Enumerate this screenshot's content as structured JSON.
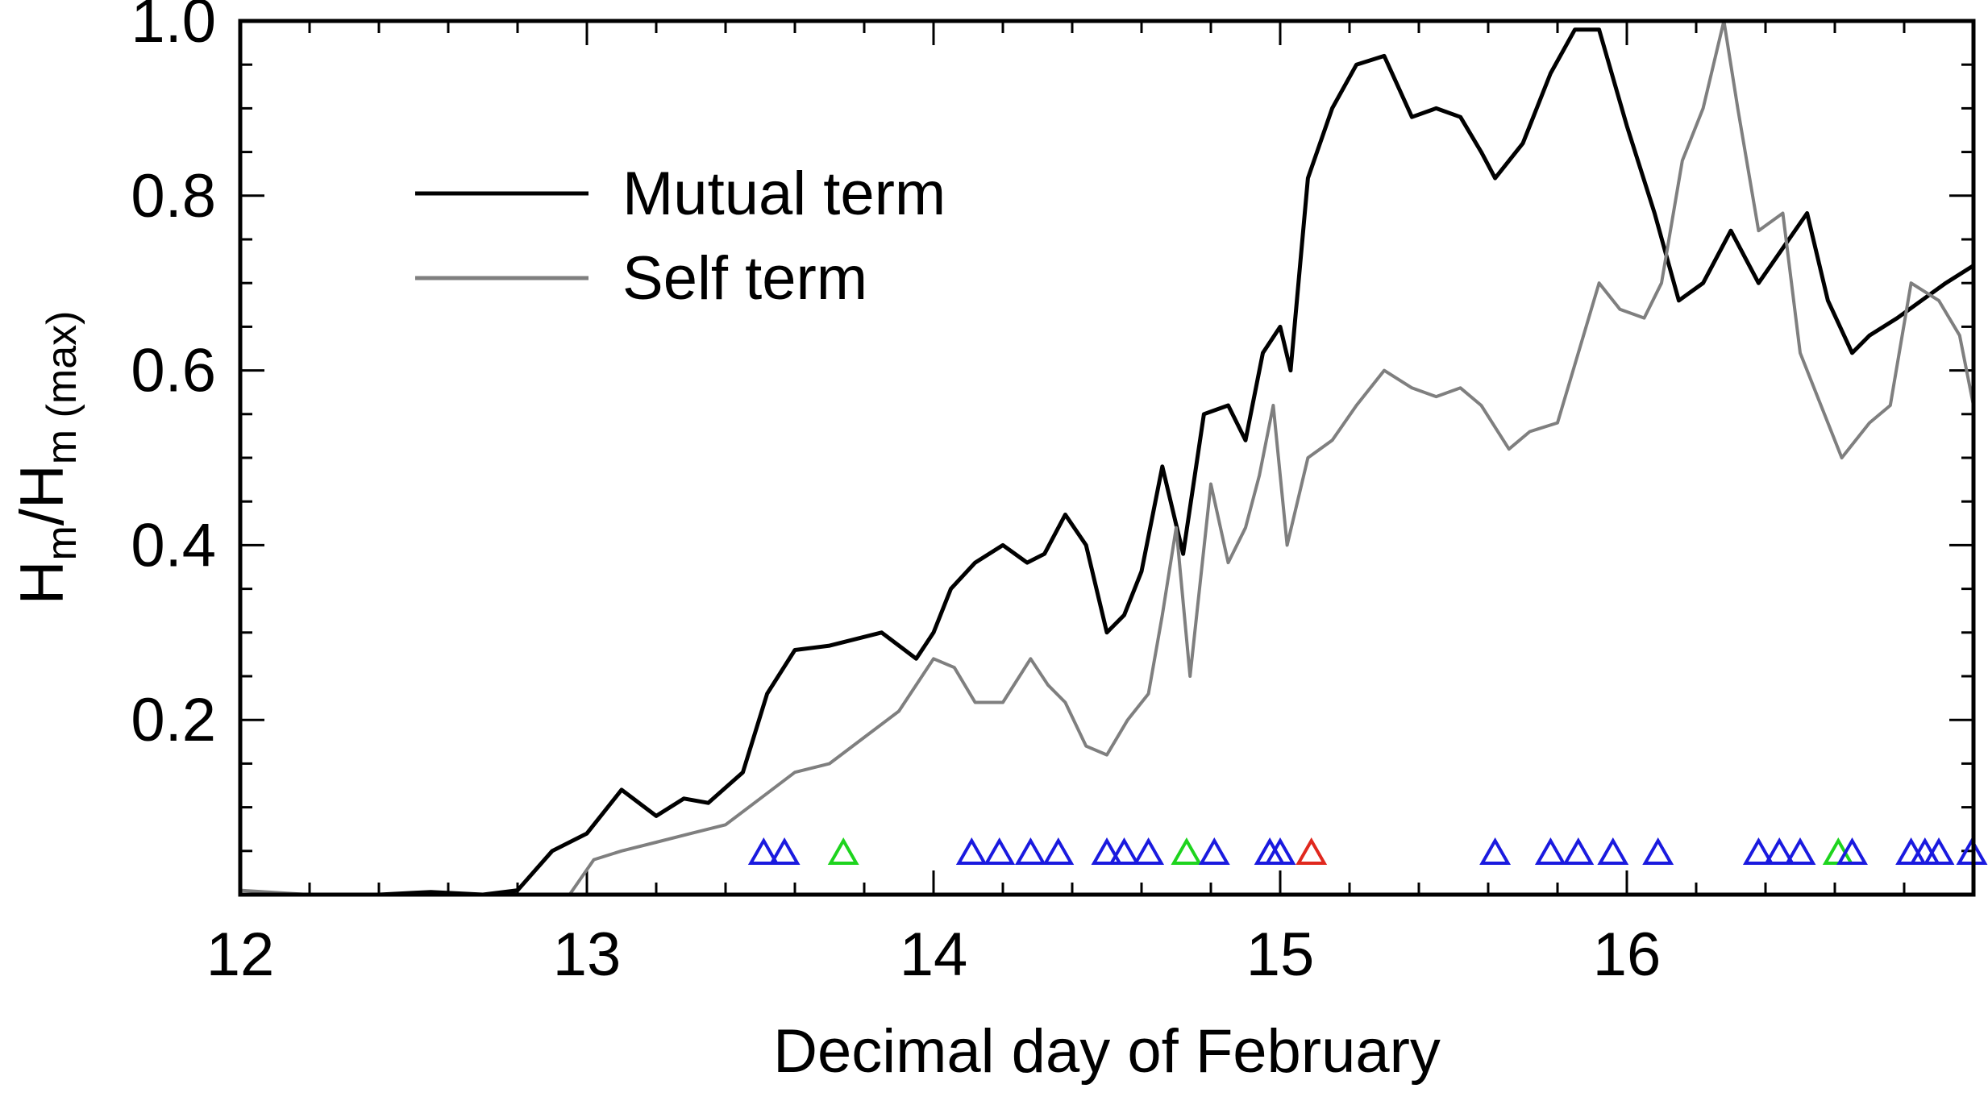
{
  "chart_data": {
    "type": "line",
    "title": "",
    "xlabel": "Decimal day of February",
    "ylabel": {
      "H1": "H",
      "sub1": "m",
      "sep": "/H",
      "sub2": "m (max)"
    },
    "xlim": [
      12,
      17
    ],
    "ylim": [
      0,
      1.0
    ],
    "xticks": [
      {
        "value": 12,
        "label": "12"
      },
      {
        "value": 13,
        "label": "13"
      },
      {
        "value": 14,
        "label": "14"
      },
      {
        "value": 15,
        "label": "15"
      },
      {
        "value": 16,
        "label": "16"
      }
    ],
    "yticks": [
      {
        "value": 0.2,
        "label": "0.2"
      },
      {
        "value": 0.4,
        "label": "0.4"
      },
      {
        "value": 0.6,
        "label": "0.6"
      },
      {
        "value": 0.8,
        "label": "0.8"
      },
      {
        "value": 1.0,
        "label": "1.0"
      }
    ],
    "legend_position": "upper-left",
    "series": [
      {
        "name": "Mutual term",
        "color": "#000000",
        "points": [
          [
            12.0,
            0.0
          ],
          [
            12.2,
            0.0
          ],
          [
            12.4,
            0.0
          ],
          [
            12.55,
            0.003
          ],
          [
            12.7,
            0.0
          ],
          [
            12.8,
            0.005
          ],
          [
            12.9,
            0.05
          ],
          [
            13.0,
            0.07
          ],
          [
            13.1,
            0.12
          ],
          [
            13.2,
            0.09
          ],
          [
            13.28,
            0.11
          ],
          [
            13.35,
            0.105
          ],
          [
            13.45,
            0.14
          ],
          [
            13.52,
            0.23
          ],
          [
            13.6,
            0.28
          ],
          [
            13.7,
            0.285
          ],
          [
            13.85,
            0.3
          ],
          [
            13.95,
            0.27
          ],
          [
            14.0,
            0.3
          ],
          [
            14.05,
            0.35
          ],
          [
            14.12,
            0.38
          ],
          [
            14.2,
            0.4
          ],
          [
            14.27,
            0.38
          ],
          [
            14.32,
            0.39
          ],
          [
            14.38,
            0.435
          ],
          [
            14.44,
            0.4
          ],
          [
            14.5,
            0.3
          ],
          [
            14.55,
            0.32
          ],
          [
            14.6,
            0.37
          ],
          [
            14.66,
            0.49
          ],
          [
            14.72,
            0.39
          ],
          [
            14.78,
            0.55
          ],
          [
            14.85,
            0.56
          ],
          [
            14.9,
            0.52
          ],
          [
            14.95,
            0.62
          ],
          [
            15.0,
            0.65
          ],
          [
            15.03,
            0.6
          ],
          [
            15.08,
            0.82
          ],
          [
            15.15,
            0.9
          ],
          [
            15.22,
            0.95
          ],
          [
            15.3,
            0.96
          ],
          [
            15.38,
            0.89
          ],
          [
            15.45,
            0.9
          ],
          [
            15.52,
            0.89
          ],
          [
            15.58,
            0.85
          ],
          [
            15.62,
            0.82
          ],
          [
            15.7,
            0.86
          ],
          [
            15.78,
            0.94
          ],
          [
            15.85,
            0.99
          ],
          [
            15.92,
            0.99
          ],
          [
            16.0,
            0.88
          ],
          [
            16.08,
            0.78
          ],
          [
            16.15,
            0.68
          ],
          [
            16.22,
            0.7
          ],
          [
            16.3,
            0.76
          ],
          [
            16.38,
            0.7
          ],
          [
            16.45,
            0.74
          ],
          [
            16.52,
            0.78
          ],
          [
            16.58,
            0.68
          ],
          [
            16.65,
            0.62
          ],
          [
            16.7,
            0.64
          ],
          [
            16.78,
            0.66
          ],
          [
            16.85,
            0.68
          ],
          [
            16.92,
            0.7
          ],
          [
            17.0,
            0.72
          ]
        ]
      },
      {
        "name": "Self term",
        "color": "#7f7f7f",
        "points": [
          [
            12.0,
            0.005
          ],
          [
            12.2,
            0.0
          ],
          [
            12.4,
            0.0
          ],
          [
            12.6,
            0.0
          ],
          [
            12.8,
            0.0
          ],
          [
            12.95,
            0.0
          ],
          [
            13.02,
            0.04
          ],
          [
            13.1,
            0.05
          ],
          [
            13.2,
            0.06
          ],
          [
            13.3,
            0.07
          ],
          [
            13.4,
            0.08
          ],
          [
            13.5,
            0.11
          ],
          [
            13.6,
            0.14
          ],
          [
            13.7,
            0.15
          ],
          [
            13.8,
            0.18
          ],
          [
            13.9,
            0.21
          ],
          [
            14.0,
            0.27
          ],
          [
            14.06,
            0.26
          ],
          [
            14.12,
            0.22
          ],
          [
            14.2,
            0.22
          ],
          [
            14.28,
            0.27
          ],
          [
            14.33,
            0.24
          ],
          [
            14.38,
            0.22
          ],
          [
            14.44,
            0.17
          ],
          [
            14.5,
            0.16
          ],
          [
            14.56,
            0.2
          ],
          [
            14.62,
            0.23
          ],
          [
            14.66,
            0.32
          ],
          [
            14.7,
            0.42
          ],
          [
            14.74,
            0.25
          ],
          [
            14.8,
            0.47
          ],
          [
            14.85,
            0.38
          ],
          [
            14.9,
            0.42
          ],
          [
            14.94,
            0.48
          ],
          [
            14.98,
            0.56
          ],
          [
            15.02,
            0.4
          ],
          [
            15.08,
            0.5
          ],
          [
            15.15,
            0.52
          ],
          [
            15.22,
            0.56
          ],
          [
            15.3,
            0.6
          ],
          [
            15.38,
            0.58
          ],
          [
            15.45,
            0.57
          ],
          [
            15.52,
            0.58
          ],
          [
            15.58,
            0.56
          ],
          [
            15.66,
            0.51
          ],
          [
            15.72,
            0.53
          ],
          [
            15.8,
            0.54
          ],
          [
            15.86,
            0.62
          ],
          [
            15.92,
            0.7
          ],
          [
            15.98,
            0.67
          ],
          [
            16.05,
            0.66
          ],
          [
            16.1,
            0.7
          ],
          [
            16.16,
            0.84
          ],
          [
            16.22,
            0.9
          ],
          [
            16.28,
            1.0
          ],
          [
            16.32,
            0.9
          ],
          [
            16.38,
            0.76
          ],
          [
            16.45,
            0.78
          ],
          [
            16.5,
            0.62
          ],
          [
            16.56,
            0.56
          ],
          [
            16.62,
            0.5
          ],
          [
            16.7,
            0.54
          ],
          [
            16.76,
            0.56
          ],
          [
            16.82,
            0.7
          ],
          [
            16.9,
            0.68
          ],
          [
            16.96,
            0.64
          ],
          [
            17.0,
            0.56
          ]
        ]
      }
    ],
    "markers": [
      {
        "x": 13.51,
        "color": "#1a1adf"
      },
      {
        "x": 13.57,
        "color": "#1a1adf"
      },
      {
        "x": 13.74,
        "color": "#1ed41e"
      },
      {
        "x": 14.11,
        "color": "#1a1adf"
      },
      {
        "x": 14.19,
        "color": "#1a1adf"
      },
      {
        "x": 14.28,
        "color": "#1a1adf"
      },
      {
        "x": 14.36,
        "color": "#1a1adf"
      },
      {
        "x": 14.5,
        "color": "#1a1adf"
      },
      {
        "x": 14.55,
        "color": "#1a1adf"
      },
      {
        "x": 14.62,
        "color": "#1a1adf"
      },
      {
        "x": 14.73,
        "color": "#1ed41e"
      },
      {
        "x": 14.81,
        "color": "#1a1adf"
      },
      {
        "x": 14.97,
        "color": "#1a1adf"
      },
      {
        "x": 15.0,
        "color": "#1a1adf"
      },
      {
        "x": 15.09,
        "color": "#e0281e"
      },
      {
        "x": 15.62,
        "color": "#1a1adf"
      },
      {
        "x": 15.78,
        "color": "#1a1adf"
      },
      {
        "x": 15.86,
        "color": "#1a1adf"
      },
      {
        "x": 15.96,
        "color": "#1a1adf"
      },
      {
        "x": 16.09,
        "color": "#1a1adf"
      },
      {
        "x": 16.38,
        "color": "#1a1adf"
      },
      {
        "x": 16.44,
        "color": "#1a1adf"
      },
      {
        "x": 16.5,
        "color": "#1a1adf"
      },
      {
        "x": 16.61,
        "color": "#1ed41e"
      },
      {
        "x": 16.65,
        "color": "#1a1adf"
      },
      {
        "x": 16.82,
        "color": "#1a1adf"
      },
      {
        "x": 16.86,
        "color": "#1a1adf"
      },
      {
        "x": 16.9,
        "color": "#1a1adf"
      },
      {
        "x": 17.0,
        "color": "#1a1adf"
      }
    ]
  }
}
